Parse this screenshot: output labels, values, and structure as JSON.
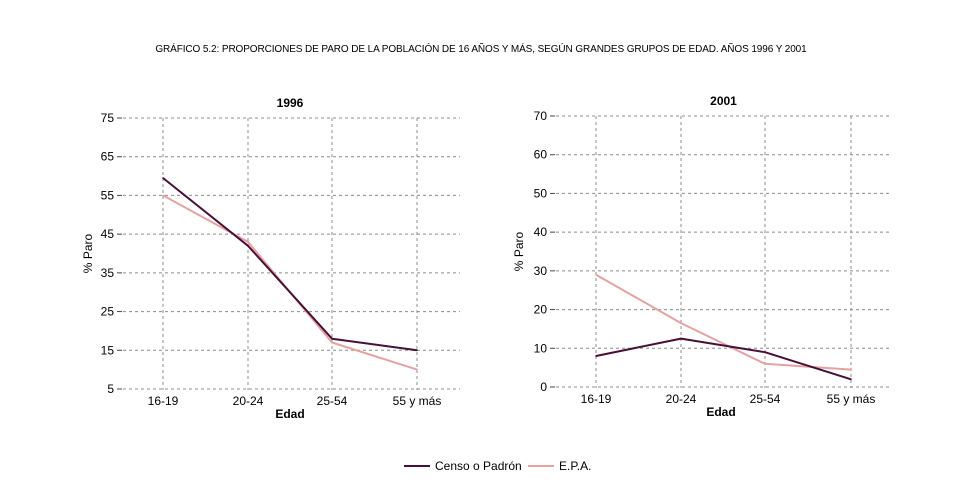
{
  "title": "GRÁFICO 5.2: PROPORCIONES DE PARO DE LA POBLACIÓN DE 16 AÑOS Y MÁS, SEGÚN GRANDES GRUPOS DE EDAD. AÑOS 1996 Y 2001",
  "legend": [
    {
      "label": "Censo o  Padrón",
      "color": "#4a0f36"
    },
    {
      "label": "E.P.A.",
      "color": "#e8a0a0"
    }
  ],
  "chart_data": [
    {
      "type": "line",
      "title": "1996",
      "xlabel": "Edad",
      "ylabel": "% Paro",
      "categories": [
        "16-19",
        "20-24",
        "25-54",
        "55 y más"
      ],
      "ylim": [
        5,
        75
      ],
      "yticks": [
        "5",
        "15",
        "25",
        "35",
        "45",
        "55",
        "65",
        "75"
      ],
      "grid": true,
      "series": [
        {
          "name": "Censo o  Padrón",
          "color": "#4a0f36",
          "values": [
            59.5,
            42,
            18,
            15
          ]
        },
        {
          "name": "E.P.A.",
          "color": "#e8a0a0",
          "values": [
            55,
            43,
            17,
            10
          ]
        }
      ]
    },
    {
      "type": "line",
      "title": "2001",
      "xlabel": "Edad",
      "ylabel": "% Paro",
      "categories": [
        "16-19",
        "20-24",
        "25-54",
        "55 y más"
      ],
      "ylim": [
        0,
        70
      ],
      "yticks": [
        "0",
        "10",
        "20",
        "30",
        "40",
        "50",
        "60",
        "70"
      ],
      "grid": true,
      "series": [
        {
          "name": "Censo o  Padrón",
          "color": "#4a0f36",
          "values": [
            8,
            12.5,
            9,
            2
          ]
        },
        {
          "name": "E.P.A.",
          "color": "#e8a0a0",
          "values": [
            29,
            16.5,
            6,
            4.5
          ]
        }
      ]
    }
  ]
}
